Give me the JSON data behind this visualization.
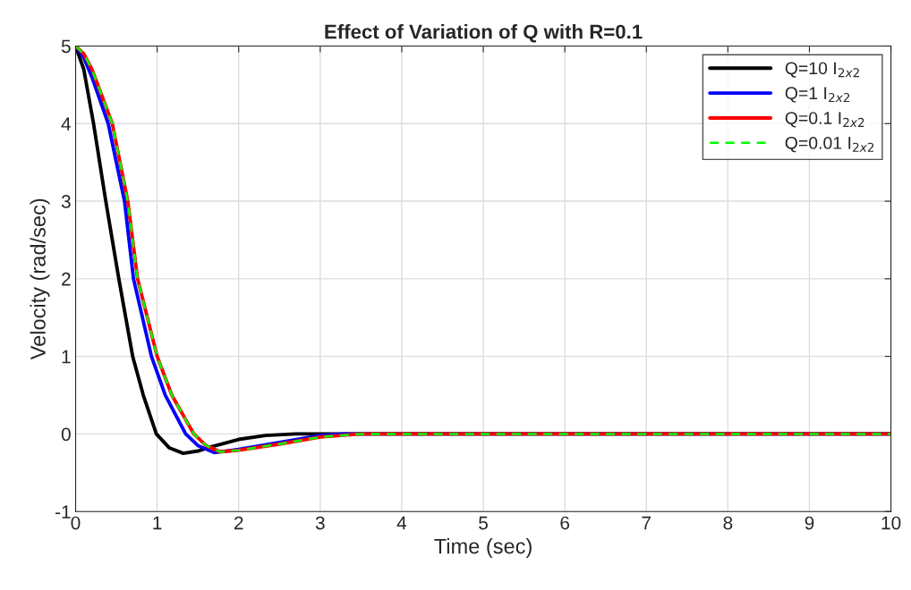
{
  "chart_data": {
    "type": "line",
    "title": "Effect of Variation of Q with R=0.1",
    "xlabel": "Time (sec)",
    "ylabel": "Velocity (rad/sec)",
    "xlim": [
      0,
      10
    ],
    "ylim": [
      -1,
      5
    ],
    "xticks": [
      0,
      1,
      2,
      3,
      4,
      5,
      6,
      7,
      8,
      9,
      10
    ],
    "yticks": [
      -1,
      0,
      1,
      2,
      3,
      4,
      5
    ],
    "grid": true,
    "legend": "top right",
    "series": [
      {
        "name": "Q=10 I$_{2x2}$",
        "color": "#000000",
        "line_style": "solid",
        "x": [
          0,
          0.1,
          0.22,
          0.37,
          0.53,
          0.7,
          0.83,
          0.99,
          1.15,
          1.32,
          1.5,
          1.65,
          2,
          2.33,
          2.7,
          10
        ],
        "values": [
          5,
          4.7,
          4,
          3,
          2,
          1,
          0.5,
          0,
          -0.18,
          -0.25,
          -0.22,
          -0.17,
          -0.07,
          -0.02,
          0,
          0
        ]
      },
      {
        "name": "Q=1 I$_{2x2}$",
        "color": "#0000ff",
        "line_style": "solid",
        "x": [
          0,
          0.1,
          0.2,
          0.4,
          0.6,
          0.71,
          0.93,
          1.1,
          1.35,
          1.5,
          1.7,
          2,
          2.5,
          3,
          3.3,
          10
        ],
        "values": [
          5,
          4.85,
          4.6,
          4,
          3,
          2,
          1,
          0.5,
          0,
          -0.15,
          -0.24,
          -0.2,
          -0.11,
          -0.02,
          0,
          0
        ]
      },
      {
        "name": "Q=0.1 I$_{2x2}$",
        "color": "#ff0000",
        "line_style": "solid",
        "x": [
          0,
          0.1,
          0.2,
          0.45,
          0.64,
          0.76,
          1.0,
          1.18,
          1.45,
          1.6,
          1.77,
          2,
          2.5,
          3,
          3.5,
          10
        ],
        "values": [
          5,
          4.9,
          4.7,
          4,
          3,
          2,
          1,
          0.5,
          0,
          -0.15,
          -0.23,
          -0.21,
          -0.13,
          -0.04,
          0,
          0
        ]
      },
      {
        "name": "Q=0.01 I$_{2x2}$",
        "color": "#00ff00",
        "line_style": "dashed",
        "x": [
          0,
          0.1,
          0.2,
          0.45,
          0.64,
          0.76,
          1.0,
          1.18,
          1.45,
          1.6,
          1.77,
          2,
          2.5,
          3,
          3.5,
          10
        ],
        "values": [
          5,
          4.9,
          4.7,
          4,
          3,
          2,
          1,
          0.5,
          0,
          -0.15,
          -0.23,
          -0.21,
          -0.13,
          -0.04,
          0,
          0
        ]
      }
    ]
  }
}
